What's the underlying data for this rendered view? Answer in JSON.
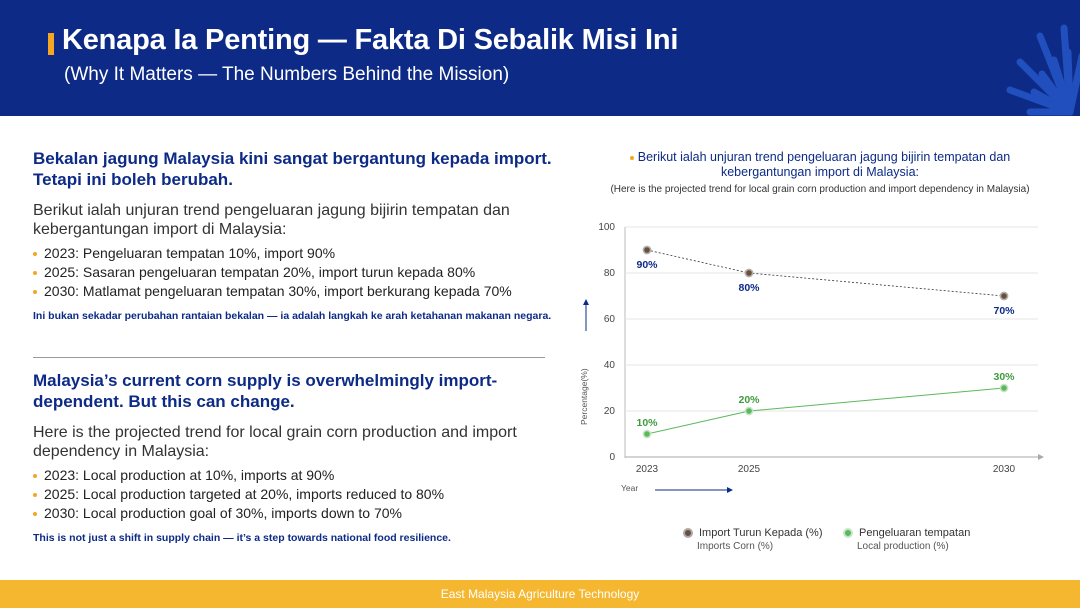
{
  "header": {
    "title": "Kenapa Ia Penting — Fakta Di Sebalik Misi Ini",
    "subtitle": "(Why It Matters — The Numbers Behind the Mission)"
  },
  "malay": {
    "heading": "Bekalan jagung Malaysia kini sangat bergantung kepada import. Tetapi ini boleh berubah.",
    "intro": "Berikut ialah unjuran trend pengeluaran jagung bijirin tempatan dan kebergantungan import di Malaysia:",
    "bullets": [
      "2023: Pengeluaran tempatan 10%, import 90%",
      "2025: Sasaran pengeluaran tempatan 20%, import turun kepada 80%",
      "2030: Matlamat pengeluaran tempatan 30%, import berkurang kepada 70%"
    ],
    "note": "Ini bukan sekadar perubahan rantaian bekalan — ia adalah langkah ke arah ketahanan makanan negara."
  },
  "english": {
    "heading": "Malaysia’s current corn supply is overwhelmingly import-dependent. But this can change.",
    "intro": "Here is the projected trend for local grain corn production and import dependency in Malaysia:",
    "bullets": [
      "2023: Local production at 10%, imports at 90%",
      "2025: Local production targeted at 20%, imports reduced to 80%",
      "2030: Local production goal of 30%, imports down to 70%"
    ],
    "note": "This is not just a shift in supply chain — it’s a step towards national food resilience."
  },
  "chart_caption": {
    "line1": "Berikut ialah unjuran trend pengeluaran jagung bijirin tempatan dan kebergantungan import di Malaysia:",
    "line2": "(Here is the projected trend for local grain corn production and import dependency in Malaysia)"
  },
  "colors": {
    "navy": "#0d2b86",
    "accent": "#f5a623",
    "import_series": "#6b4f3a",
    "local_series": "#5cb85c"
  },
  "chart_data": {
    "type": "line",
    "title": "",
    "xlabel": "Year",
    "ylabel": "Percentage(%)",
    "x": [
      "2023",
      "2025",
      "2030"
    ],
    "ylim": [
      0,
      100
    ],
    "yticks": [
      0,
      20,
      40,
      60,
      80,
      100
    ],
    "series": [
      {
        "name": "Import Turun Kepada (%)",
        "name_en": "Imports Corn (%)",
        "values": [
          90,
          80,
          70
        ],
        "labels": [
          "90%",
          "80%",
          "70%"
        ]
      },
      {
        "name": "Pengeluaran tempatan",
        "name_en": "Local production (%)",
        "values": [
          10,
          20,
          30
        ],
        "labels": [
          "10%",
          "20%",
          "30%"
        ]
      }
    ]
  },
  "footer": {
    "text": "East Malaysia Agriculture Technology"
  }
}
